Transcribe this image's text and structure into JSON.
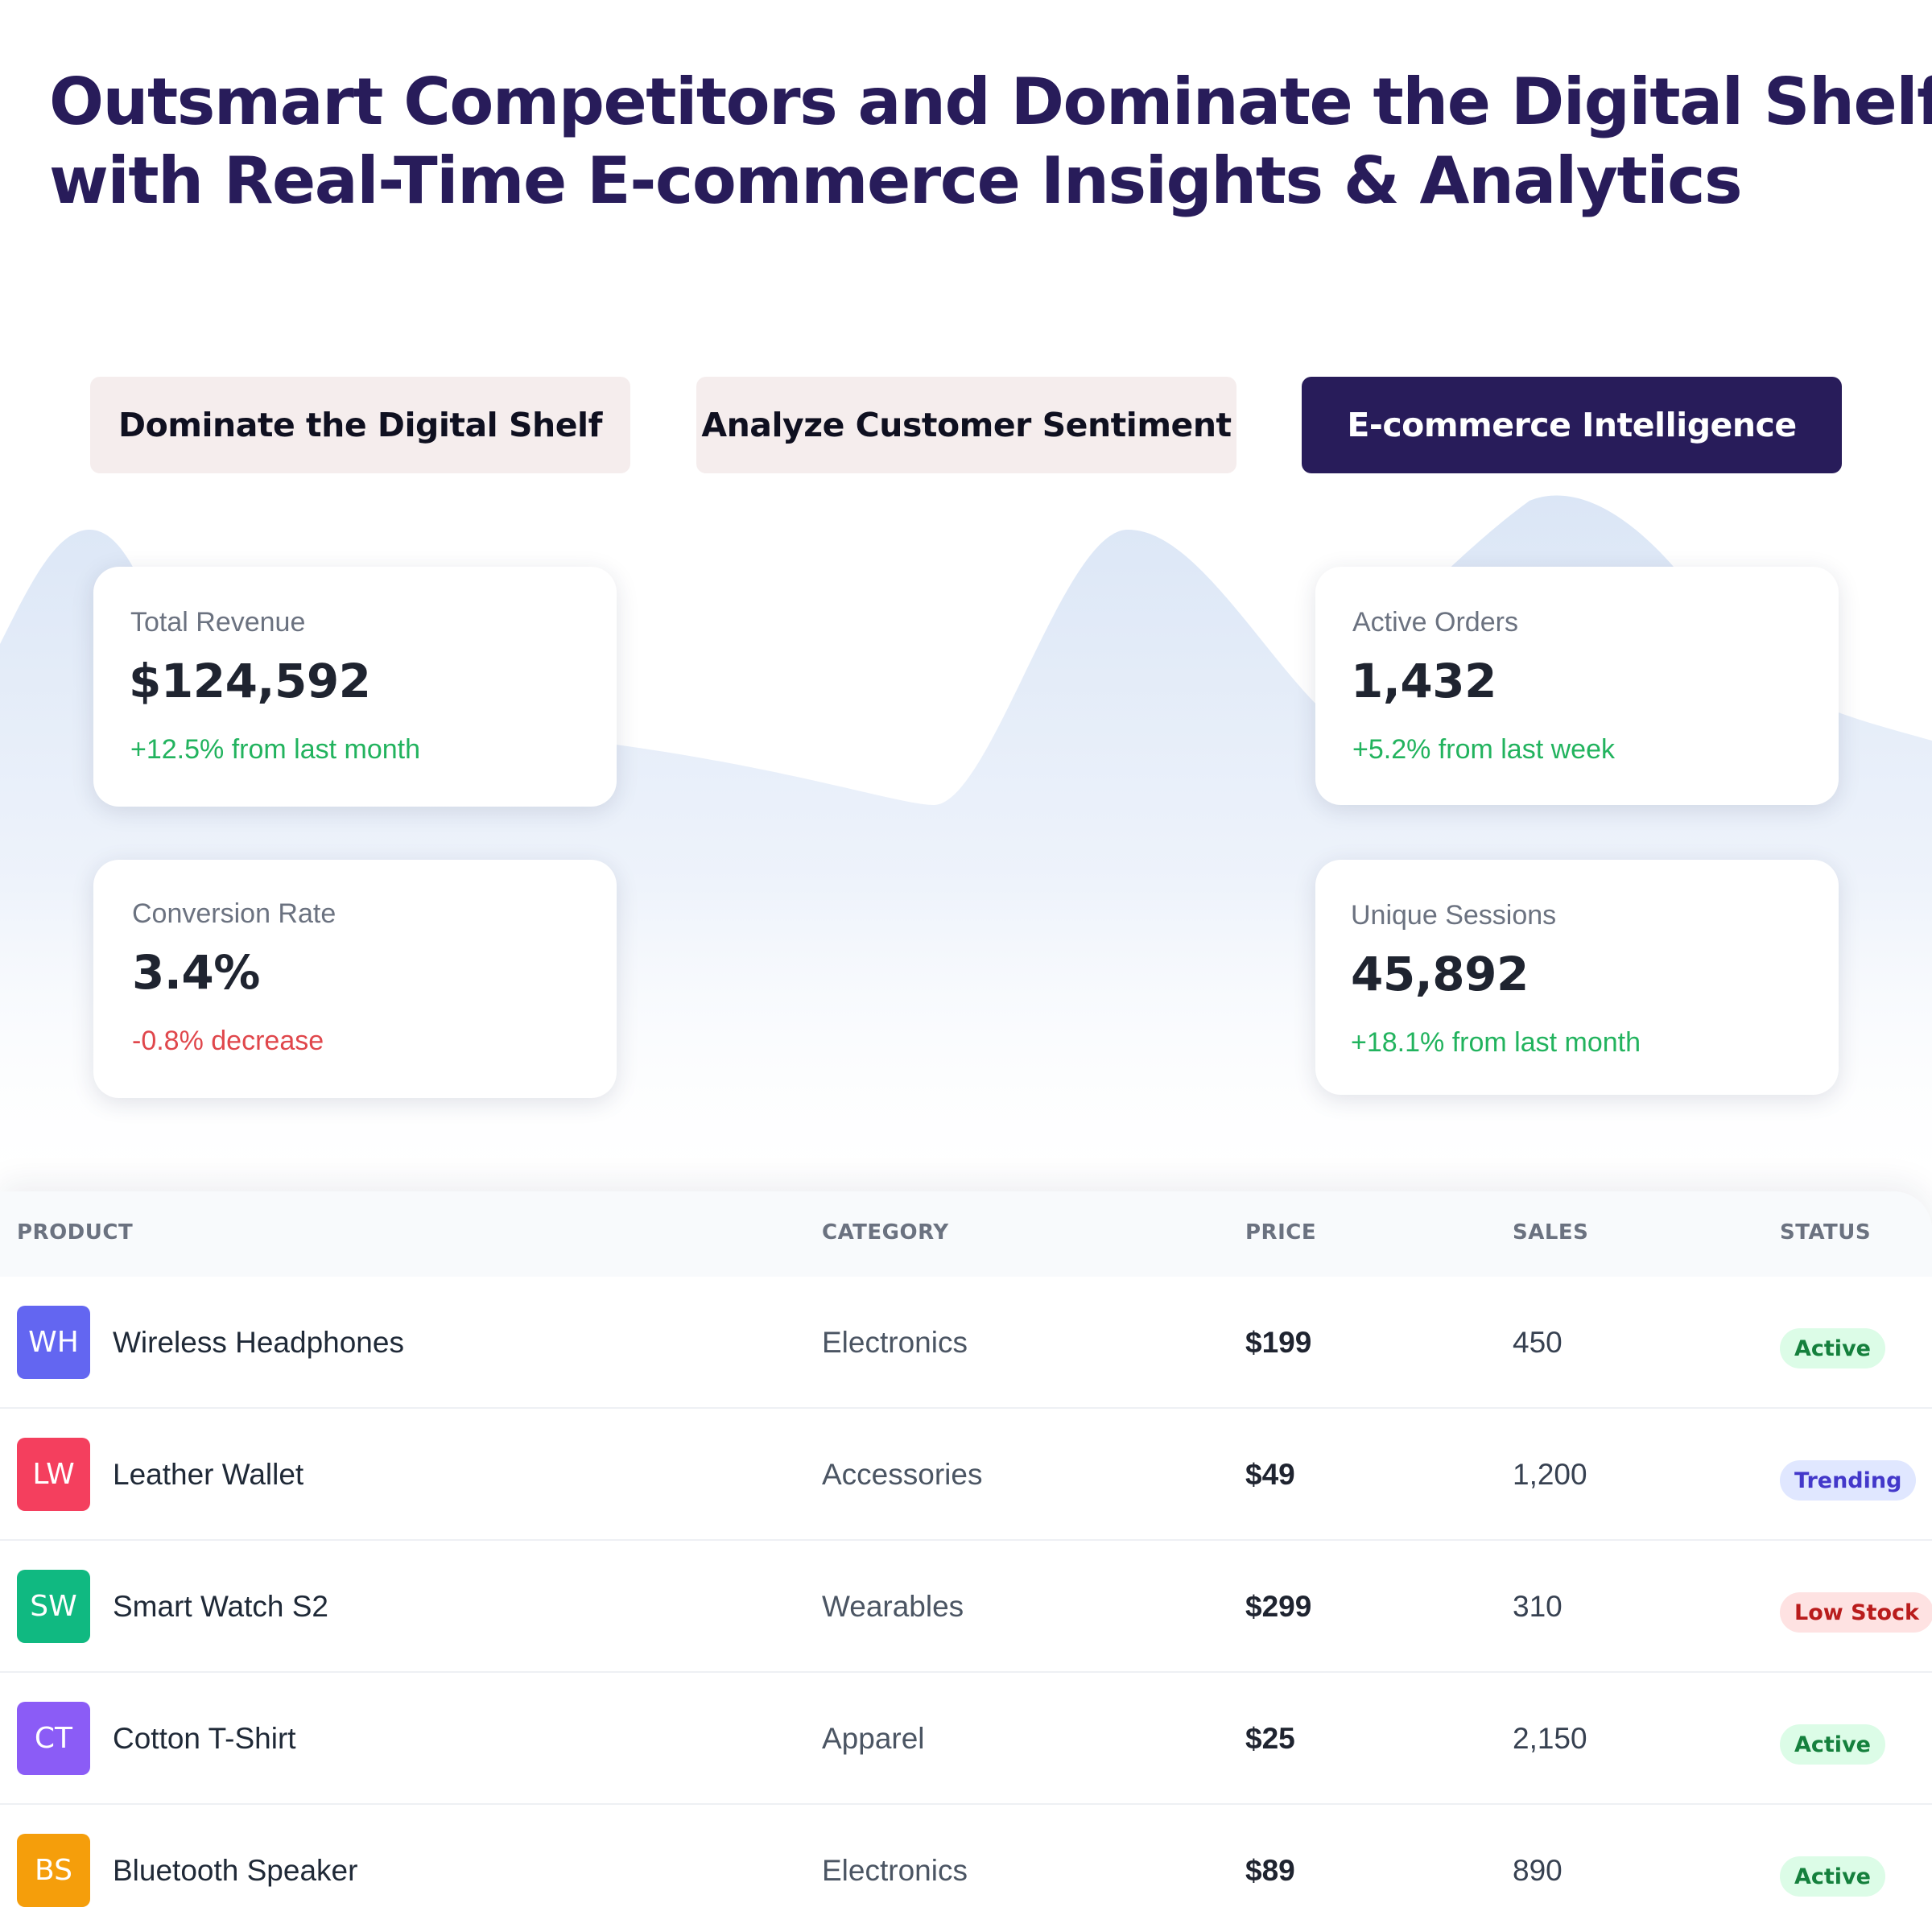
{
  "headline": {
    "line1": "Outsmart Competitors and Dominate the Digital Shelf",
    "line2": "with Real-Time E-commerce Insights & Analytics"
  },
  "tabs": [
    {
      "label": "Dominate the Digital Shelf",
      "active": false
    },
    {
      "label": "Analyze Customer Sentiment",
      "active": false
    },
    {
      "label": "E-commerce Intelligence",
      "active": true
    }
  ],
  "metrics": {
    "revenue": {
      "label": "Total Revenue",
      "value": "$124,592",
      "delta": "+12.5% from last month",
      "trend": "up"
    },
    "orders": {
      "label": "Active Orders",
      "value": "1,432",
      "delta": "+5.2% from last week",
      "trend": "up"
    },
    "conversion": {
      "label": "Conversion Rate",
      "value": "3.4%",
      "delta": "-0.8% decrease",
      "trend": "down"
    },
    "sessions": {
      "label": "Unique Sessions",
      "value": "45,892",
      "delta": "+18.1% from last month",
      "trend": "up"
    }
  },
  "table": {
    "headers": {
      "product": "PRODUCT",
      "category": "CATEGORY",
      "price": "PRICE",
      "sales": "SALES",
      "status": "STATUS"
    },
    "rows": [
      {
        "initials": "WH",
        "avatar_color": "#6366f1",
        "name": "Wireless Headphones",
        "category": "Electronics",
        "price": "$199",
        "sales": "450",
        "status": "Active",
        "status_bg": "#dcfce7",
        "status_fg": "#15803d"
      },
      {
        "initials": "LW",
        "avatar_color": "#f43f5e",
        "name": "Leather Wallet",
        "category": "Accessories",
        "price": "$49",
        "sales": "1,200",
        "status": "Trending",
        "status_bg": "#e0e7ff",
        "status_fg": "#4338ca"
      },
      {
        "initials": "SW",
        "avatar_color": "#10b981",
        "name": "Smart Watch S2",
        "category": "Wearables",
        "price": "$299",
        "sales": "310",
        "status": "Low Stock",
        "status_bg": "#fee2e2",
        "status_fg": "#b91c1c"
      },
      {
        "initials": "CT",
        "avatar_color": "#8b5cf6",
        "name": "Cotton T-Shirt",
        "category": "Apparel",
        "price": "$25",
        "sales": "2,150",
        "status": "Active",
        "status_bg": "#dcfce7",
        "status_fg": "#15803d"
      },
      {
        "initials": "BS",
        "avatar_color": "#f59e0b",
        "name": "Bluetooth Speaker",
        "category": "Electronics",
        "price": "$89",
        "sales": "890",
        "status": "Active",
        "status_bg": "#dcfce7",
        "status_fg": "#15803d"
      }
    ]
  }
}
